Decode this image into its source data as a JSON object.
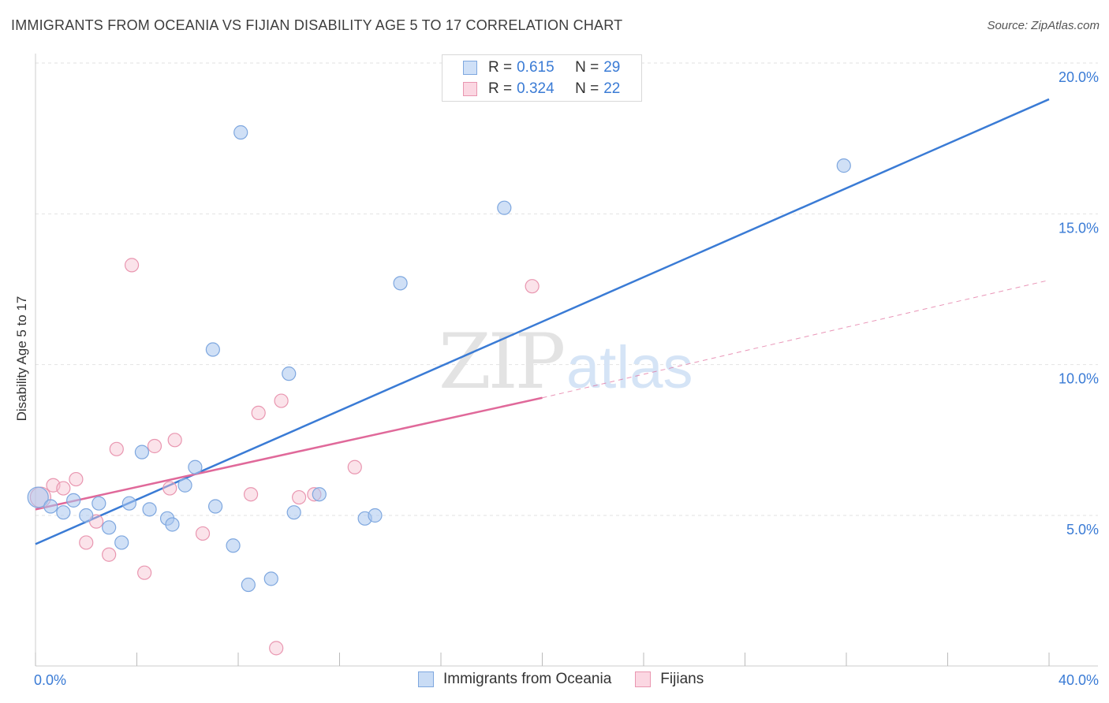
{
  "title": "IMMIGRANTS FROM OCEANIA VS FIJIAN DISABILITY AGE 5 TO 17 CORRELATION CHART",
  "source": "Source: ZipAtlas.com",
  "watermark": {
    "zip": "ZIP",
    "atlas": "atlas"
  },
  "legend_top": [
    {
      "r_label": "R =",
      "r_value": "0.615",
      "n_label": "N =",
      "n_value": "29",
      "color": "#a9c7ef",
      "border": "#7ea7df"
    },
    {
      "r_label": "R =",
      "r_value": "0.324",
      "n_label": "N =",
      "n_value": "22",
      "color": "#f6c0d0",
      "border": "#e996b0"
    }
  ],
  "legend_bottom": [
    {
      "label": "Immigrants from Oceania",
      "color": "#c9dcf5",
      "border": "#7ea7df"
    },
    {
      "label": "Fijians",
      "color": "#fbd7e2",
      "border": "#e996b0"
    }
  ],
  "chart_data": {
    "type": "scatter",
    "title": "IMMIGRANTS FROM OCEANIA VS FIJIAN DISABILITY AGE 5 TO 17 CORRELATION CHART",
    "xlabel": "",
    "ylabel": "Disability Age 5 to 17",
    "xlim": [
      0,
      40
    ],
    "ylim": [
      0,
      20.5
    ],
    "x_tick_labels": [
      "0.0%",
      "40.0%"
    ],
    "y_ticks": [
      5,
      10,
      15,
      20
    ],
    "y_tick_labels": [
      "5.0%",
      "10.0%",
      "15.0%",
      "20.0%"
    ],
    "series": [
      {
        "name": "Immigrants from Oceania",
        "color": "#3a7bd5",
        "fill": "rgba(169,199,239,0.55)",
        "stroke": "#7ea7df",
        "points": [
          [
            0.1,
            5.6
          ],
          [
            0.6,
            5.3
          ],
          [
            1.1,
            5.1
          ],
          [
            1.5,
            5.5
          ],
          [
            2.0,
            5.0
          ],
          [
            2.5,
            5.4
          ],
          [
            2.9,
            4.6
          ],
          [
            3.4,
            4.1
          ],
          [
            3.7,
            5.4
          ],
          [
            4.2,
            7.1
          ],
          [
            4.5,
            5.2
          ],
          [
            5.2,
            4.9
          ],
          [
            5.4,
            4.7
          ],
          [
            5.9,
            6.0
          ],
          [
            6.3,
            6.6
          ],
          [
            7.0,
            10.5
          ],
          [
            7.1,
            5.3
          ],
          [
            7.8,
            4.0
          ],
          [
            8.1,
            17.7
          ],
          [
            8.4,
            2.7
          ],
          [
            9.3,
            2.9
          ],
          [
            10.0,
            9.7
          ],
          [
            10.2,
            5.1
          ],
          [
            11.2,
            5.7
          ],
          [
            13.0,
            4.9
          ],
          [
            13.4,
            5.0
          ],
          [
            14.4,
            12.7
          ],
          [
            18.5,
            15.2
          ],
          [
            31.9,
            16.6
          ]
        ],
        "trend": {
          "x0": 0,
          "y0": 4.05,
          "x1": 40,
          "y1": 18.8
        }
      },
      {
        "name": "Fijians",
        "color": "#e0699a",
        "fill": "rgba(246,192,208,0.45)",
        "stroke": "#e996b0",
        "points": [
          [
            0.2,
            5.6
          ],
          [
            0.7,
            6.0
          ],
          [
            1.1,
            5.9
          ],
          [
            1.6,
            6.2
          ],
          [
            2.0,
            4.1
          ],
          [
            2.4,
            4.8
          ],
          [
            2.9,
            3.7
          ],
          [
            3.2,
            7.2
          ],
          [
            3.8,
            13.3
          ],
          [
            4.3,
            3.1
          ],
          [
            4.7,
            7.3
          ],
          [
            5.3,
            5.9
          ],
          [
            5.5,
            7.5
          ],
          [
            6.6,
            4.4
          ],
          [
            8.5,
            5.7
          ],
          [
            8.8,
            8.4
          ],
          [
            9.5,
            0.6
          ],
          [
            9.7,
            8.8
          ],
          [
            10.4,
            5.6
          ],
          [
            11.0,
            5.7
          ],
          [
            12.6,
            6.6
          ],
          [
            19.6,
            12.6
          ]
        ],
        "trend": {
          "x0": 0,
          "y0": 5.2,
          "x1": 20,
          "y1": 8.9,
          "dash_x1": 40,
          "dash_y1": 12.8
        }
      }
    ]
  }
}
